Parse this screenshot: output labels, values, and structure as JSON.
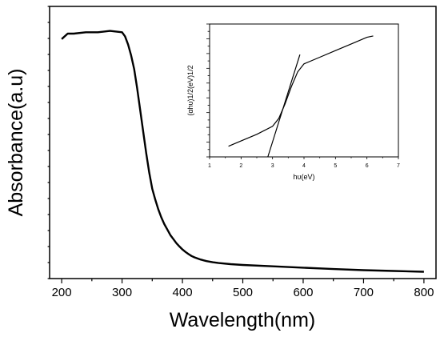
{
  "chart_data": [
    {
      "type": "line",
      "title": "",
      "xlabel": "Wavelength(nm)",
      "ylabel": "Absorbance(a.u)",
      "xlim": [
        180,
        820
      ],
      "ylim": [
        0,
        1
      ],
      "xticks": [
        200,
        300,
        400,
        500,
        600,
        700,
        800
      ],
      "xtick_labels": [
        "200",
        "300",
        "400",
        "500",
        "600",
        "700",
        "800"
      ],
      "yticks_labeled": false,
      "grid": false,
      "legend": "none",
      "series": [
        {
          "x": [
            200,
            210,
            220,
            240,
            260,
            280,
            300,
            305,
            310,
            315,
            320,
            325,
            330,
            335,
            340,
            345,
            350,
            355,
            360,
            365,
            370,
            375,
            380,
            385,
            390,
            395,
            400,
            405,
            410,
            415,
            420,
            430,
            440,
            450,
            460,
            480,
            500,
            550,
            600,
            650,
            700,
            750,
            800
          ],
          "y": [
            0.88,
            0.9,
            0.9,
            0.905,
            0.905,
            0.91,
            0.905,
            0.89,
            0.86,
            0.82,
            0.77,
            0.7,
            0.62,
            0.54,
            0.46,
            0.39,
            0.33,
            0.29,
            0.255,
            0.225,
            0.2,
            0.18,
            0.16,
            0.145,
            0.13,
            0.118,
            0.107,
            0.098,
            0.09,
            0.083,
            0.078,
            0.07,
            0.064,
            0.06,
            0.057,
            0.053,
            0.05,
            0.045,
            0.04,
            0.035,
            0.031,
            0.028,
            0.025
          ]
        }
      ]
    },
    {
      "type": "line",
      "title": "",
      "xlabel": "hυ(eV)",
      "ylabel": "(αhυ)1/2(eV)1/2",
      "xlim": [
        1,
        7
      ],
      "ylim": [
        0,
        1
      ],
      "xticks": [
        1,
        2,
        3,
        4,
        5,
        6,
        7
      ],
      "xtick_labels": [
        "1",
        "2",
        "3",
        "4",
        "5",
        "6",
        "7"
      ],
      "yticks_labeled": false,
      "grid": false,
      "legend": "none",
      "series": [
        {
          "x": [
            1.6,
            2.0,
            2.5,
            3.0,
            3.2,
            3.4,
            3.6,
            3.8,
            4.0,
            4.5,
            5.0,
            5.5,
            6.0,
            6.2
          ],
          "y": [
            0.08,
            0.12,
            0.17,
            0.23,
            0.29,
            0.4,
            0.53,
            0.64,
            0.7,
            0.75,
            0.8,
            0.85,
            0.9,
            0.91
          ]
        },
        {
          "x": [
            2.85,
            3.87
          ],
          "y": [
            0.0,
            0.77
          ]
        }
      ]
    }
  ]
}
